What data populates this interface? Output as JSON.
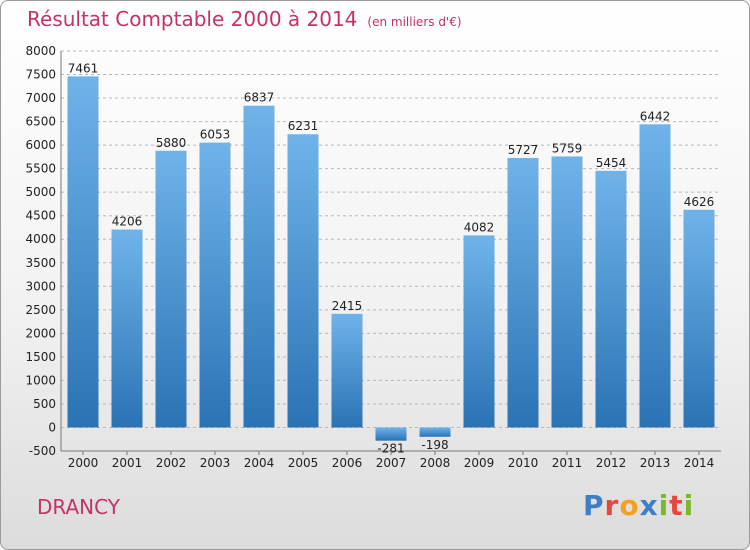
{
  "title": "Résultat Comptable 2000 à 2014",
  "subtitle": "(en milliers d'€)",
  "place": "DRANCY",
  "logo": {
    "letters": [
      "P",
      "r",
      "o",
      "x",
      "i",
      "t",
      "i"
    ],
    "colors": [
      "#3d7fc6",
      "#e8453c",
      "#f4a21b",
      "#3d7fc6",
      "#7cb82f",
      "#e8453c",
      "#7cb82f"
    ]
  },
  "colors": {
    "bar_top": "#6fb3ea",
    "bar_bottom": "#2a73b4",
    "grid": "#b8b8b8",
    "title": "#c3326a"
  },
  "chart_data": {
    "type": "bar",
    "categories": [
      "2000",
      "2001",
      "2002",
      "2003",
      "2004",
      "2005",
      "2006",
      "2007",
      "2008",
      "2009",
      "2010",
      "2011",
      "2012",
      "2013",
      "2014"
    ],
    "values": [
      7461,
      4206,
      5880,
      6053,
      6837,
      6231,
      2415,
      -281,
      -198,
      4082,
      5727,
      5759,
      5454,
      6442,
      4626
    ],
    "ylim": [
      -500,
      8000
    ],
    "yticks": [
      -500,
      0,
      500,
      1000,
      1500,
      2000,
      2500,
      3000,
      3500,
      4000,
      4500,
      5000,
      5500,
      6000,
      6500,
      7000,
      7500,
      8000
    ],
    "grid": true,
    "xlabel": "",
    "ylabel": ""
  }
}
